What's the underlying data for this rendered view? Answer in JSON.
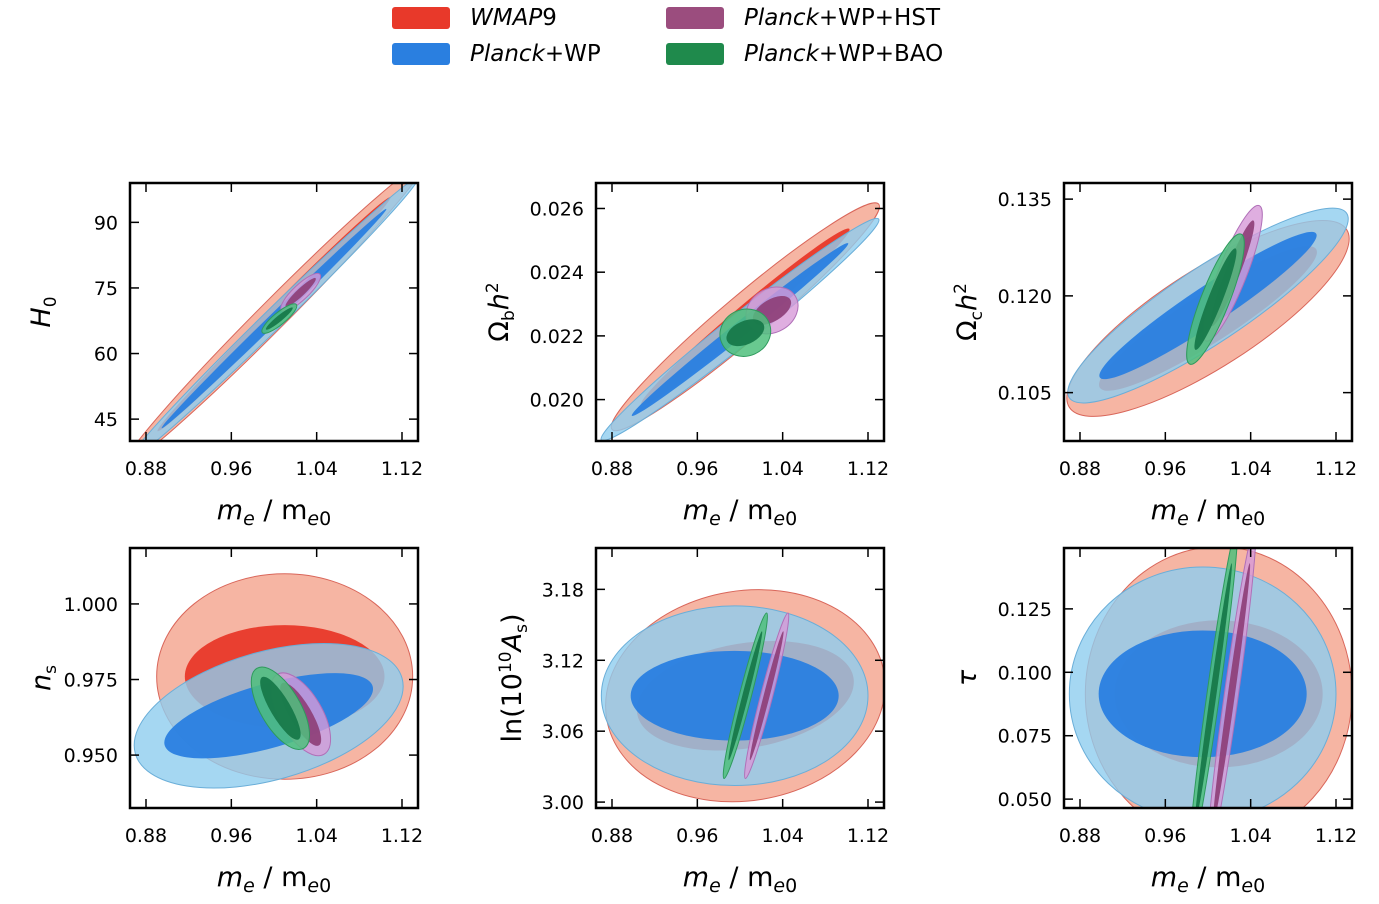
{
  "legend": {
    "items": [
      {
        "name": "WMAP9",
        "italic": "WMAP",
        "rest": "9",
        "color": "#e8392a"
      },
      {
        "name": "Planck+WP",
        "italic": "Planck",
        "rest": "+WP",
        "color": "#2a7fe0"
      },
      {
        "name": "Planck+WP+HST",
        "italic": "Planck",
        "rest": "+WP+HST",
        "color": "#9b4d7e"
      },
      {
        "name": "Planck+WP+BAO",
        "italic": "Planck",
        "rest": "+WP+BAO",
        "color": "#1f8a4c"
      }
    ]
  },
  "chart_data": [
    {
      "type": "contour",
      "xlabel": "m_e/m_e0",
      "ylabel": "H_0",
      "xlim": [
        0.865,
        1.135
      ],
      "ylim": [
        40,
        99
      ],
      "xticks": [
        "0.88",
        "0.96",
        "1.04",
        "1.12"
      ],
      "yticks": [
        "45",
        "60",
        "75",
        "90"
      ],
      "contours": [
        {
          "series": "WMAP9",
          "center": [
            1.0,
            69
          ],
          "slope": 245,
          "semi_major": 0.14,
          "semi_minor": 2.3
        },
        {
          "series": "Planck+WP",
          "center": [
            1.0,
            68
          ],
          "slope": 238,
          "semi_major": 0.135,
          "semi_minor": 1.6
        },
        {
          "series": "Planck+WP+HST",
          "center": [
            1.025,
            74
          ],
          "slope": 230,
          "semi_major": 0.018,
          "semi_minor": 1.2
        },
        {
          "series": "Planck+WP+BAO",
          "center": [
            1.005,
            68
          ],
          "slope": 200,
          "semi_major": 0.016,
          "semi_minor": 0.8
        }
      ]
    },
    {
      "type": "contour",
      "xlabel": "m_e/m_e0",
      "ylabel": "Ω_b h^2",
      "xlim": [
        0.865,
        1.135
      ],
      "ylim": [
        0.0187,
        0.0268
      ],
      "xticks": [
        "0.88",
        "0.96",
        "1.04",
        "1.12"
      ],
      "yticks": [
        "0.020",
        "0.022",
        "0.024",
        "0.026"
      ],
      "contours": [
        {
          "series": "WMAP9",
          "center": [
            1.005,
            0.0226
          ],
          "slope": 0.0283,
          "semi_major": 0.125,
          "semi_minor": 0.00045
        },
        {
          "series": "Planck+WP",
          "center": [
            1.0,
            0.0222
          ],
          "slope": 0.0267,
          "semi_major": 0.13,
          "semi_minor": 0.0003
        },
        {
          "series": "Planck+WP+HST",
          "center": [
            1.03,
            0.0228
          ],
          "slope": 0.02,
          "semi_major": 0.022,
          "semi_minor": 0.0004
        },
        {
          "series": "Planck+WP+BAO",
          "center": [
            1.005,
            0.0221
          ],
          "slope": 0.015,
          "semi_major": 0.022,
          "semi_minor": 0.0004
        }
      ]
    },
    {
      "type": "contour",
      "xlabel": "m_e/m_e0",
      "ylabel": "Ω_c h^2",
      "xlim": [
        0.865,
        1.135
      ],
      "ylim": [
        0.0975,
        0.1375
      ],
      "xticks": [
        "0.88",
        "0.96",
        "1.04",
        "1.12"
      ],
      "yticks": [
        "0.105",
        "0.120",
        "0.135"
      ],
      "contours": [
        {
          "series": "WMAP9",
          "center": [
            1.0,
            0.1165
          ],
          "slope": 0.106,
          "semi_major": 0.13,
          "semi_minor": 0.0045
        },
        {
          "series": "Planck+WP",
          "center": [
            1.0,
            0.1185
          ],
          "slope": 0.11,
          "semi_major": 0.13,
          "semi_minor": 0.0035
        },
        {
          "series": "Planck+WP+HST",
          "center": [
            1.023,
            0.1235
          ],
          "slope": 0.42,
          "semi_major": 0.025,
          "semi_minor": 0.003
        },
        {
          "series": "Planck+WP+BAO",
          "center": [
            1.007,
            0.1195
          ],
          "slope": 0.42,
          "semi_major": 0.024,
          "semi_minor": 0.003
        }
      ]
    },
    {
      "type": "contour",
      "xlabel": "m_e/m_e0",
      "ylabel": "n_s",
      "xlim": [
        0.865,
        1.135
      ],
      "ylim": [
        0.9325,
        1.0185
      ],
      "xticks": [
        "0.88",
        "0.96",
        "1.04",
        "1.12"
      ],
      "yticks": [
        "0.950",
        "0.975",
        "1.000"
      ],
      "contours": [
        {
          "series": "WMAP9",
          "center": [
            1.01,
            0.976
          ],
          "slope": 0.0,
          "semi_major": 0.12,
          "semi_minor": 0.017
        },
        {
          "series": "Planck+WP",
          "center": [
            0.995,
            0.963
          ],
          "slope": 0.1,
          "semi_major": 0.125,
          "semi_minor": 0.011
        },
        {
          "series": "Planck+WP+HST",
          "center": [
            1.025,
            0.9635
          ],
          "slope": -0.6,
          "semi_major": 0.022,
          "semi_minor": 0.007
        },
        {
          "series": "Planck+WP+BAO",
          "center": [
            1.006,
            0.9655
          ],
          "slope": -0.6,
          "semi_major": 0.022,
          "semi_minor": 0.0065
        }
      ]
    },
    {
      "type": "contour",
      "xlabel": "m_e/m_e0",
      "ylabel": "ln(10^10 A_s)",
      "xlim": [
        0.865,
        1.135
      ],
      "ylim": [
        2.995,
        3.215
      ],
      "xticks": [
        "0.88",
        "0.96",
        "1.04",
        "1.12"
      ],
      "yticks": [
        "3.00",
        "3.06",
        "3.12",
        "3.18"
      ],
      "contours": [
        {
          "series": "WMAP9",
          "center": [
            1.005,
            3.09
          ],
          "slope": 0.15,
          "semi_major": 0.13,
          "semi_minor": 0.045
        },
        {
          "series": "Planck+WP",
          "center": [
            0.995,
            3.09
          ],
          "slope": 0.0,
          "semi_major": 0.125,
          "semi_minor": 0.038
        },
        {
          "series": "Planck+WP+HST",
          "center": [
            1.025,
            3.09
          ],
          "slope": 3.5,
          "semi_major": 0.02,
          "semi_minor": 0.008
        },
        {
          "series": "Planck+WP+BAO",
          "center": [
            1.005,
            3.09
          ],
          "slope": 3.5,
          "semi_major": 0.02,
          "semi_minor": 0.008
        }
      ]
    },
    {
      "type": "contour",
      "xlabel": "m_e/m_e0",
      "ylabel": "τ",
      "xlim": [
        0.865,
        1.135
      ],
      "ylim": [
        0.0465,
        0.149
      ],
      "xticks": [
        "0.88",
        "0.96",
        "1.04",
        "1.12"
      ],
      "yticks": [
        "0.050",
        "0.075",
        "0.100",
        "0.125"
      ],
      "contours": [
        {
          "series": "WMAP9",
          "center": [
            1.01,
            0.0915
          ],
          "slope": 0.0,
          "semi_major": 0.125,
          "semi_minor": 0.029
        },
        {
          "series": "Planck+WP",
          "center": [
            0.995,
            0.0915
          ],
          "slope": 0.0,
          "semi_major": 0.125,
          "semi_minor": 0.025
        },
        {
          "series": "Planck+WP+HST",
          "center": [
            1.022,
            0.0915
          ],
          "slope": 3.0,
          "semi_major": 0.022,
          "semi_minor": 0.01
        },
        {
          "series": "Planck+WP+BAO",
          "center": [
            1.005,
            0.0915
          ],
          "slope": 3.0,
          "semi_major": 0.022,
          "semi_minor": 0.009
        }
      ]
    }
  ]
}
